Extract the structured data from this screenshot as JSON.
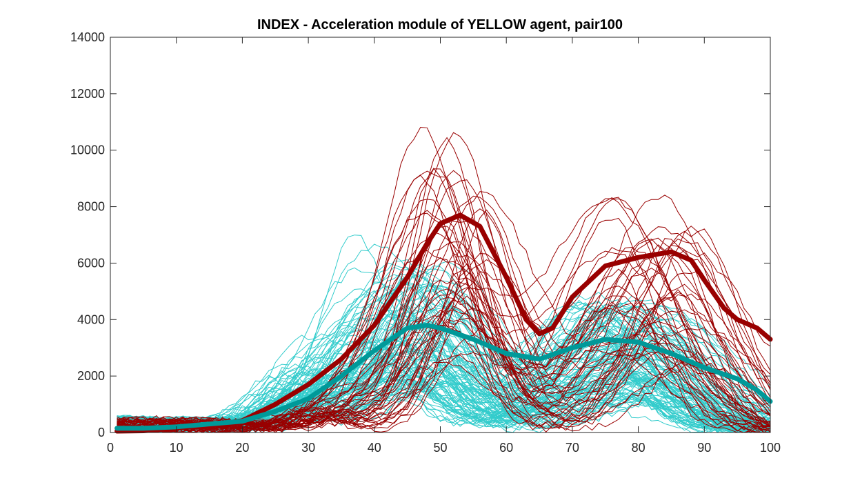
{
  "chart_data": {
    "type": "line",
    "title": "INDEX - Acceleration module of YELLOW agent, pair100",
    "xlabel": "",
    "ylabel": "",
    "xlim": [
      0,
      100
    ],
    "ylim": [
      0,
      14000
    ],
    "xticks": [
      0,
      10,
      20,
      30,
      40,
      50,
      60,
      70,
      80,
      90,
      100
    ],
    "yticks": [
      0,
      2000,
      4000,
      6000,
      8000,
      10000,
      12000,
      14000
    ],
    "grid": false,
    "legend": "none",
    "colors": {
      "red_trials": "#990000",
      "cyan_trials": "#33cccc",
      "red_mean": "#990000",
      "cyan_mean": "#009999"
    },
    "series": [
      {
        "role": "mean",
        "color": "#990000",
        "x": [
          1,
          5,
          10,
          15,
          20,
          25,
          30,
          35,
          40,
          45,
          48,
          50,
          53,
          56,
          60,
          63,
          65,
          67,
          70,
          75,
          80,
          85,
          88,
          90,
          93,
          95,
          98,
          100
        ],
        "y": [
          50,
          60,
          150,
          250,
          420,
          1000,
          1700,
          2600,
          3800,
          5500,
          6700,
          7400,
          7700,
          7300,
          5500,
          4000,
          3500,
          3700,
          4800,
          5900,
          6200,
          6400,
          6100,
          5400,
          4400,
          4000,
          3700,
          3300
        ]
      },
      {
        "role": "mean",
        "color": "#009999",
        "x": [
          1,
          5,
          10,
          15,
          20,
          25,
          30,
          35,
          40,
          45,
          48,
          50,
          55,
          60,
          65,
          70,
          75,
          80,
          85,
          90,
          95,
          98,
          100
        ],
        "y": [
          150,
          150,
          200,
          300,
          400,
          750,
          1200,
          2000,
          2900,
          3700,
          3800,
          3700,
          3300,
          2800,
          2600,
          3000,
          3300,
          3200,
          2800,
          2300,
          1900,
          1500,
          1100
        ]
      }
    ]
  }
}
